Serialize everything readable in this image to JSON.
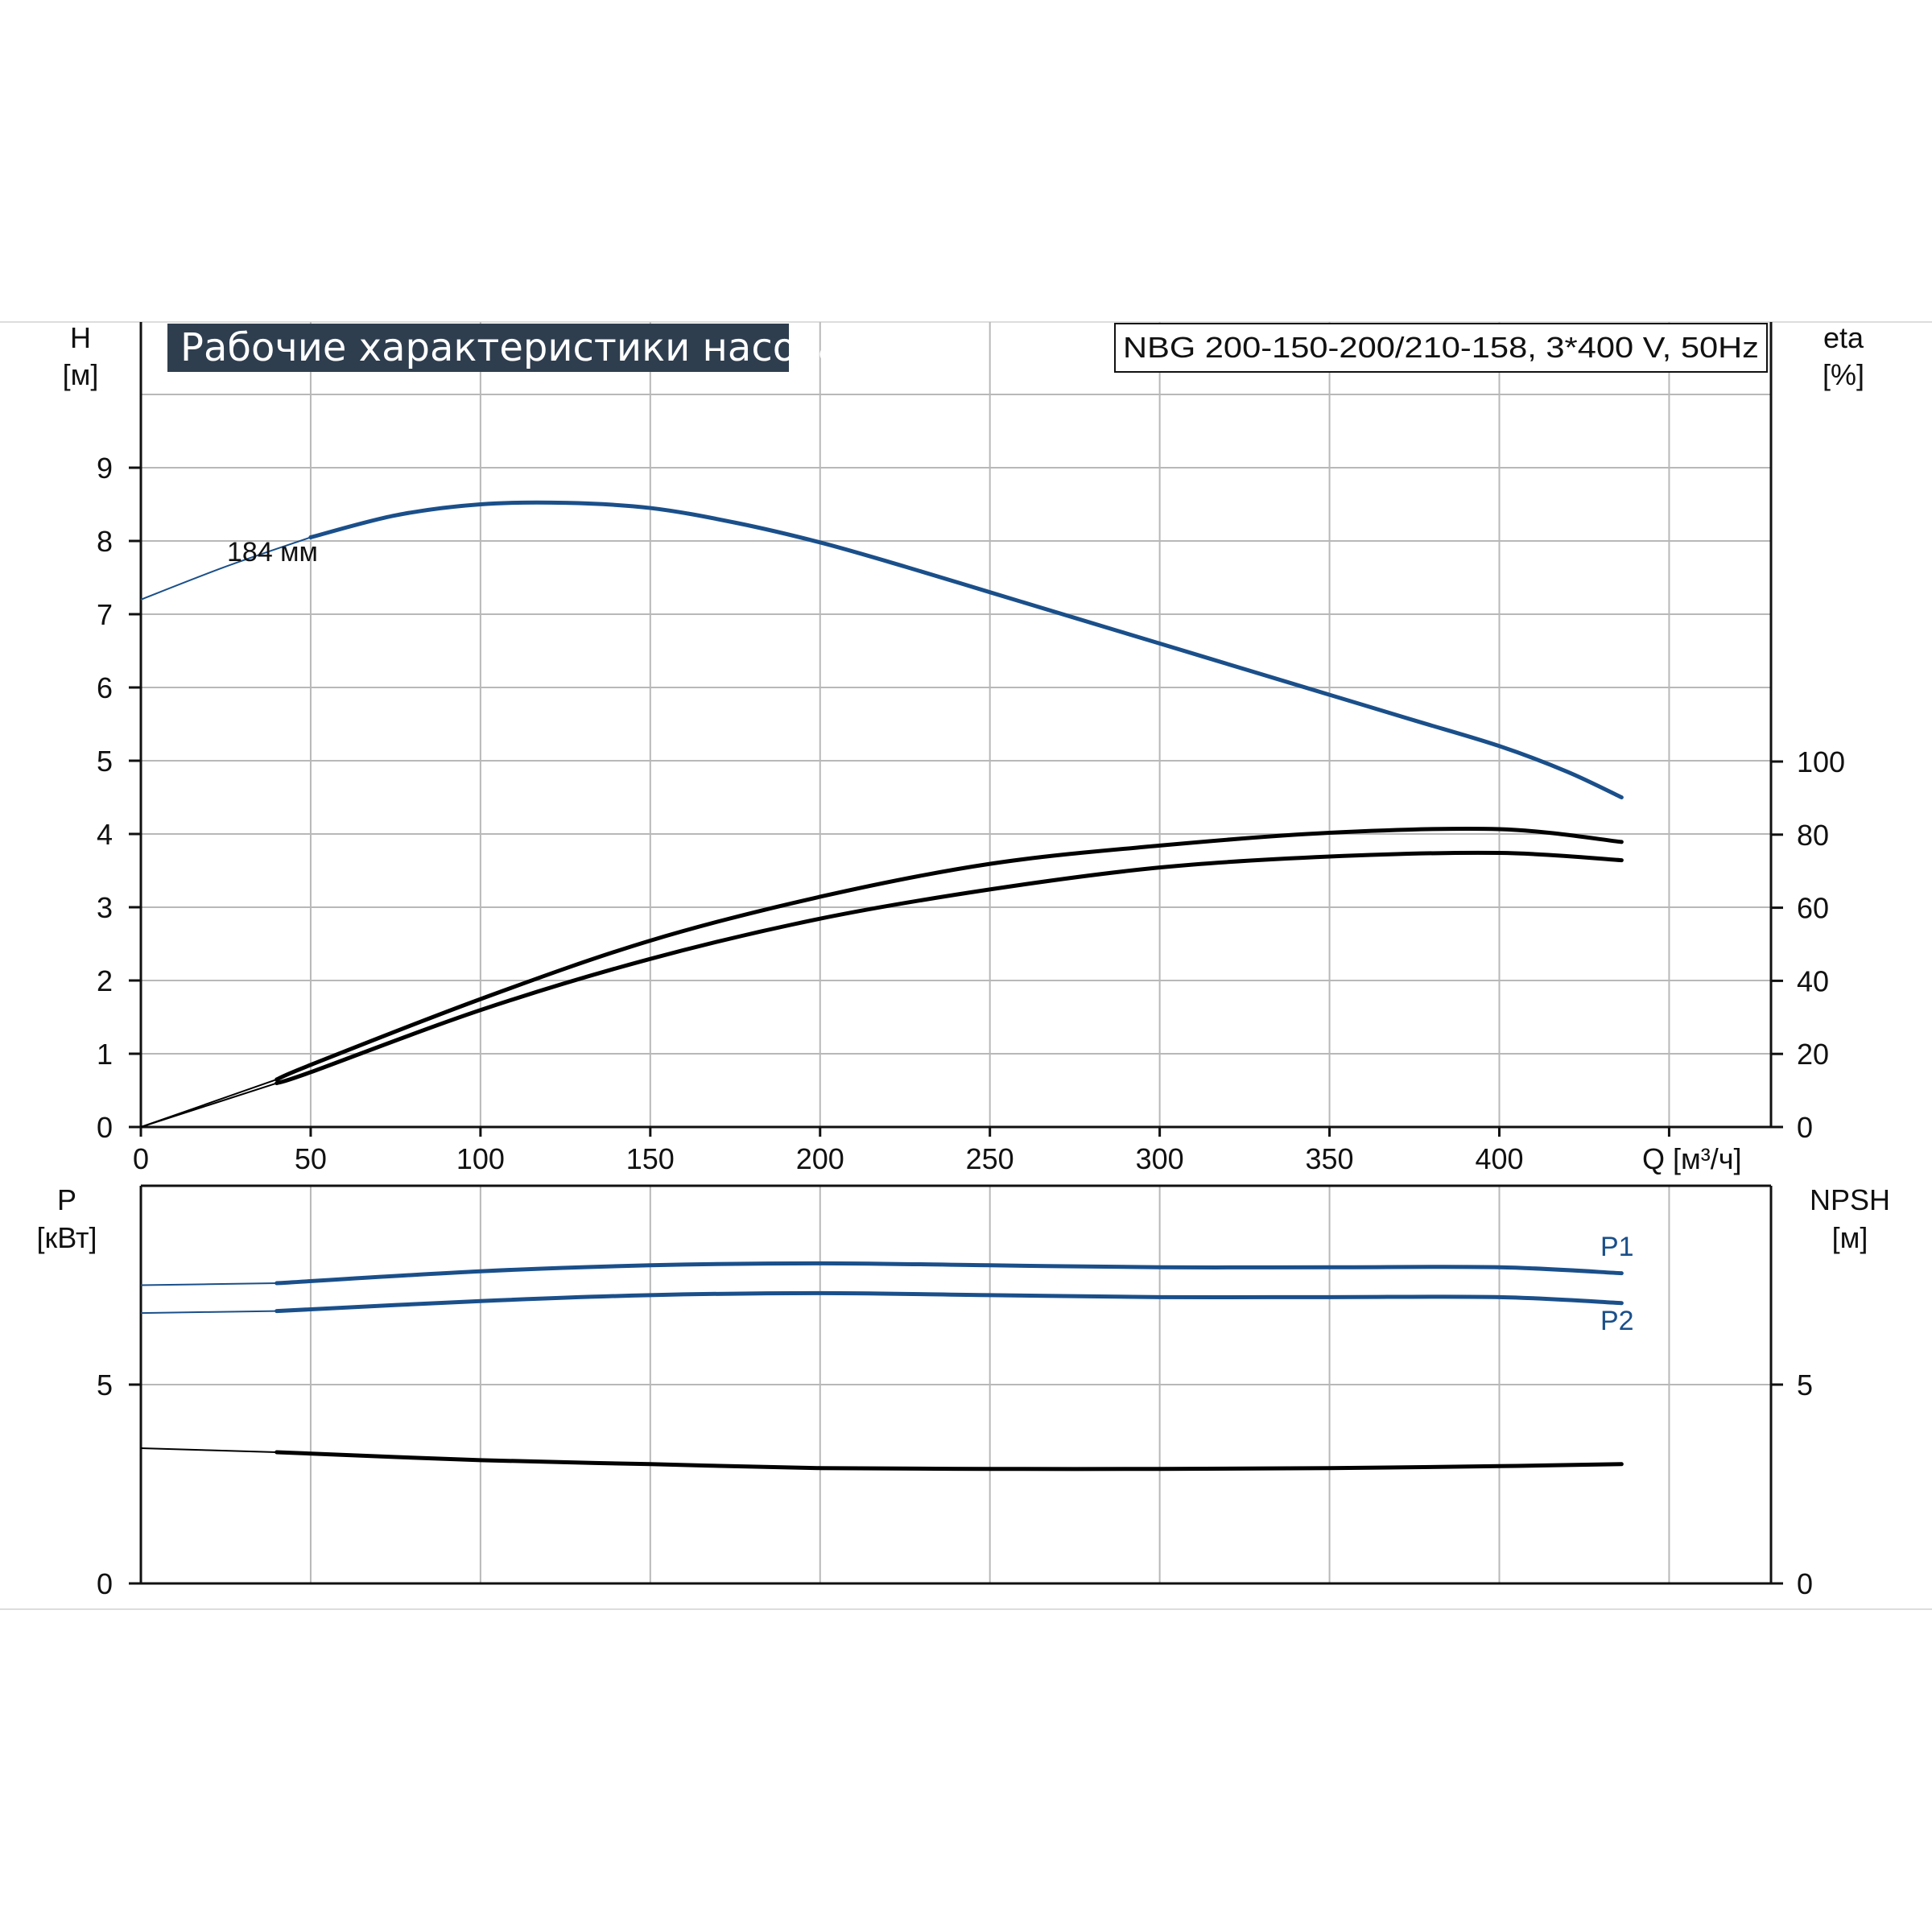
{
  "header": {
    "title": "Рабочие характеристики насоса",
    "model": "NBG 200-150-200/210-158, 3*400 V, 50Hz"
  },
  "colors": {
    "title_bg": "#2f3e4f",
    "head_curve": "#1a4f8a",
    "power_curve": "#1a4f8a",
    "efficiency_curve": "#000000",
    "npsh_curve": "#000000",
    "grid": "#b8b8b8"
  },
  "axes": {
    "h_name": "H",
    "h_unit": "[м]",
    "eta_name": "eta",
    "eta_unit": "[%]",
    "q_label": "Q [м³/ч]",
    "p_name": "P",
    "p_unit": "[кВт]",
    "npsh_name": "NPSH",
    "npsh_unit": "[м]"
  },
  "chart_data": [
    {
      "type": "line",
      "title": "Рабочие характеристики насоса",
      "subtitle": "NBG 200-150-200/210-158, 3*400 V, 50Hz",
      "xlabel": "Q [м³/ч]",
      "ylabel": "H [м]",
      "y2label": "eta [%]",
      "xlim": [
        0,
        480
      ],
      "ylim": [
        0,
        10
      ],
      "y2lim": [
        0,
        100
      ],
      "x_ticks": [
        0,
        50,
        100,
        150,
        200,
        250,
        300,
        350,
        400
      ],
      "y_ticks": [
        0,
        1,
        2,
        3,
        4,
        5,
        6,
        7,
        8,
        9
      ],
      "y2_ticks": [
        0,
        20,
        40,
        60,
        80,
        100
      ],
      "grid": true,
      "annotations": [
        "184 мм"
      ],
      "series": [
        {
          "name": "184 мм",
          "axis": "left",
          "x": [
            0,
            25,
            50,
            75,
            100,
            125,
            150,
            175,
            200,
            225,
            250,
            275,
            300,
            325,
            350,
            375,
            400,
            420,
            436
          ],
          "values": [
            7.2,
            7.65,
            8.05,
            8.35,
            8.5,
            8.52,
            8.45,
            8.25,
            7.98,
            7.65,
            7.3,
            6.95,
            6.6,
            6.25,
            5.9,
            5.55,
            5.2,
            4.85,
            4.5
          ]
        },
        {
          "axis": "right",
          "x": [
            0,
            40,
            50,
            100,
            150,
            200,
            250,
            300,
            350,
            400,
            436
          ],
          "values": [
            0,
            13,
            17,
            35,
            51,
            63,
            72,
            77,
            80.5,
            81.5,
            78
          ]
        },
        {
          "axis": "right",
          "x": [
            0,
            40,
            50,
            100,
            150,
            200,
            250,
            300,
            350,
            400,
            436
          ],
          "values": [
            0,
            12,
            15,
            32,
            46,
            57,
            65,
            71,
            74,
            75,
            73
          ]
        }
      ]
    },
    {
      "type": "line",
      "xlabel": "Q [м³/ч]",
      "ylabel": "P [кВт]",
      "y2label": "NPSH [м]",
      "xlim": [
        0,
        480
      ],
      "ylim": [
        0,
        10
      ],
      "y2lim": [
        0,
        10
      ],
      "y_ticks": [
        0,
        5
      ],
      "y2_ticks": [
        0,
        5
      ],
      "grid": true,
      "series": [
        {
          "name": "P1",
          "axis": "left",
          "x": [
            0,
            40,
            100,
            150,
            200,
            250,
            300,
            350,
            400,
            436
          ],
          "values": [
            7.5,
            7.55,
            7.85,
            8.0,
            8.05,
            8.0,
            7.95,
            7.95,
            7.95,
            7.8
          ]
        },
        {
          "name": "P2",
          "axis": "left",
          "x": [
            0,
            40,
            100,
            150,
            200,
            250,
            300,
            350,
            400,
            436
          ],
          "values": [
            6.8,
            6.85,
            7.1,
            7.25,
            7.3,
            7.25,
            7.2,
            7.2,
            7.2,
            7.05
          ]
        },
        {
          "axis": "right",
          "x": [
            0,
            40,
            100,
            150,
            200,
            250,
            300,
            350,
            400,
            436
          ],
          "values": [
            3.4,
            3.3,
            3.1,
            3.0,
            2.9,
            2.88,
            2.88,
            2.9,
            2.95,
            3.0
          ]
        }
      ]
    }
  ]
}
